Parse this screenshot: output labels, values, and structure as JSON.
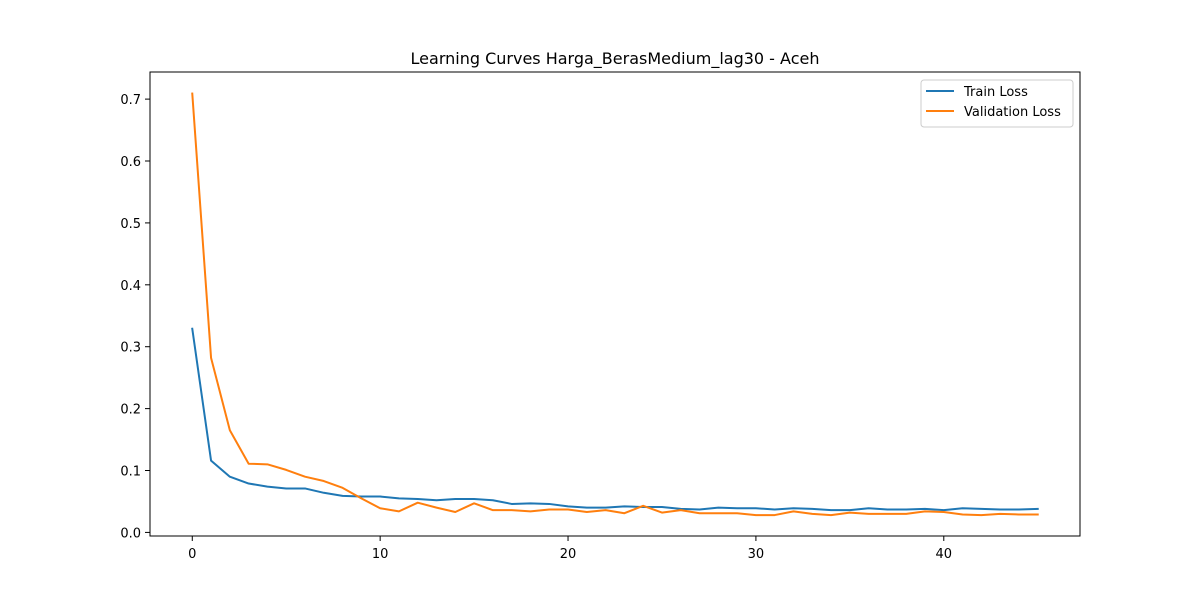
{
  "chart_data": {
    "type": "line",
    "title": "Learning Curves Harga_BerasMedium_lag30 - Aceh",
    "xlabel": "",
    "ylabel": "",
    "xlim": [
      -2.25,
      47.25
    ],
    "ylim": [
      -0.0058,
      0.7438
    ],
    "xticks": [
      0,
      10,
      20,
      30,
      40
    ],
    "xtick_labels": [
      "0",
      "10",
      "20",
      "30",
      "40"
    ],
    "yticks": [
      0.0,
      0.1,
      0.2,
      0.3,
      0.4,
      0.5,
      0.6,
      0.7
    ],
    "ytick_labels": [
      "0.0",
      "0.1",
      "0.2",
      "0.3",
      "0.4",
      "0.5",
      "0.6",
      "0.7"
    ],
    "grid": false,
    "legend_position": "upper right",
    "x": [
      0,
      1,
      2,
      3,
      4,
      5,
      6,
      7,
      8,
      9,
      10,
      11,
      12,
      13,
      14,
      15,
      16,
      17,
      18,
      19,
      20,
      21,
      22,
      23,
      24,
      25,
      26,
      27,
      28,
      29,
      30,
      31,
      32,
      33,
      34,
      35,
      36,
      37,
      38,
      39,
      40,
      41,
      42,
      43,
      44,
      45
    ],
    "series": [
      {
        "name": "Train Loss",
        "color": "#1f77b4",
        "values": [
          0.329,
          0.116,
          0.09,
          0.079,
          0.074,
          0.071,
          0.071,
          0.064,
          0.059,
          0.058,
          0.058,
          0.055,
          0.054,
          0.052,
          0.054,
          0.054,
          0.052,
          0.046,
          0.047,
          0.046,
          0.042,
          0.04,
          0.04,
          0.042,
          0.041,
          0.041,
          0.038,
          0.037,
          0.04,
          0.039,
          0.039,
          0.037,
          0.039,
          0.038,
          0.036,
          0.036,
          0.039,
          0.037,
          0.037,
          0.038,
          0.036,
          0.039,
          0.038,
          0.037,
          0.037,
          0.038
        ]
      },
      {
        "name": "Validation Loss",
        "color": "#ff7f0e",
        "values": [
          0.709,
          0.282,
          0.165,
          0.111,
          0.11,
          0.101,
          0.09,
          0.083,
          0.072,
          0.055,
          0.039,
          0.034,
          0.048,
          0.04,
          0.033,
          0.047,
          0.036,
          0.036,
          0.034,
          0.037,
          0.037,
          0.033,
          0.036,
          0.031,
          0.043,
          0.032,
          0.036,
          0.031,
          0.031,
          0.031,
          0.028,
          0.028,
          0.034,
          0.03,
          0.028,
          0.032,
          0.03,
          0.03,
          0.03,
          0.034,
          0.033,
          0.029,
          0.028,
          0.03,
          0.029,
          0.029
        ]
      }
    ]
  }
}
